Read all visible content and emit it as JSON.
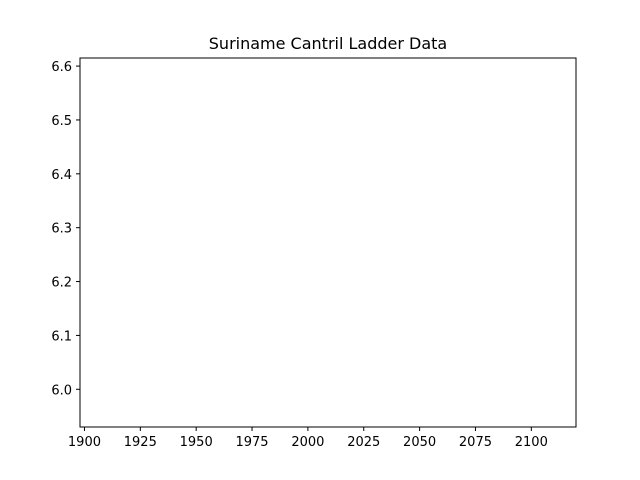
{
  "chart_data": {
    "type": "line",
    "title": "Suriname Cantril Ladder Data",
    "xlabel": "",
    "ylabel": "",
    "xlim": [
      1898,
      2120
    ],
    "ylim": [
      5.93,
      6.615
    ],
    "x_ticks": [
      1900,
      1925,
      1950,
      1975,
      2000,
      2025,
      2050,
      2075,
      2100
    ],
    "y_ticks": [
      6.0,
      6.1,
      6.2,
      6.3,
      6.4,
      6.5,
      6.6
    ],
    "y_tick_labels": [
      "6.0",
      "6.1",
      "6.2",
      "6.3",
      "6.4",
      "6.5",
      "6.6"
    ],
    "series": [],
    "grid": false,
    "legend": "none"
  }
}
